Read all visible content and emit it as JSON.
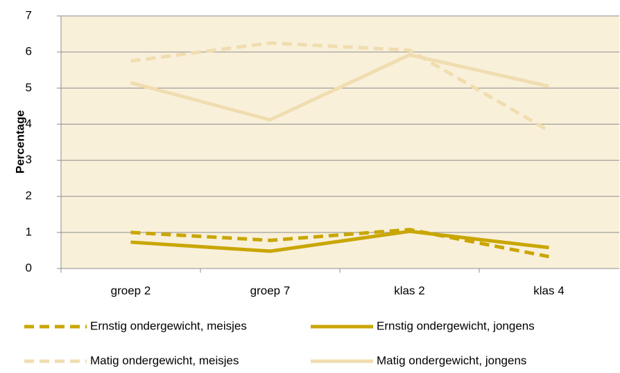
{
  "chart_data": {
    "type": "line",
    "y_label": "Percentage",
    "categories": [
      "groep 2",
      "groep 7",
      "klas 2",
      "klas 4"
    ],
    "ylim": [
      0,
      7
    ],
    "yticks": [
      0,
      1,
      2,
      3,
      4,
      5,
      6,
      7
    ],
    "grid": true,
    "series": [
      {
        "name": "Ernstig ondergewicht, meisjes",
        "color": "#c9a602",
        "dashed": true,
        "values": [
          1.0,
          0.78,
          1.08,
          0.33
        ]
      },
      {
        "name": "Ernstig ondergewicht, jongens",
        "color": "#c9a602",
        "dashed": false,
        "values": [
          0.73,
          0.48,
          1.03,
          0.58
        ]
      },
      {
        "name": "Matig ondergewicht, meisjes",
        "color": "#f0ddb0",
        "dashed": true,
        "values": [
          5.75,
          6.25,
          6.05,
          3.82
        ]
      },
      {
        "name": "Matig ondergewicht, jongens",
        "color": "#f0ddb0",
        "dashed": false,
        "values": [
          5.15,
          4.12,
          5.92,
          5.05
        ]
      }
    ]
  }
}
